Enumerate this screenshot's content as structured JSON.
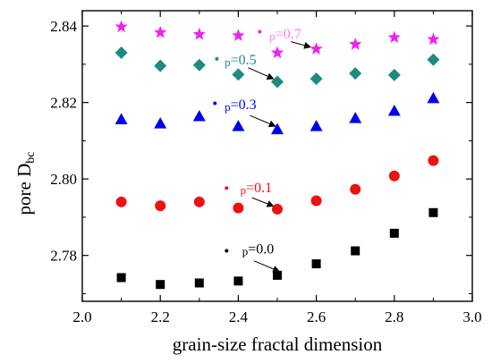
{
  "chart_data": {
    "type": "scatter",
    "title": "",
    "xlabel": "grain-size fractal dimension",
    "ylabel_main": "pore D",
    "ylabel_sub": "bc",
    "xlim": [
      2.0,
      3.0
    ],
    "ylim": [
      2.768,
      2.844
    ],
    "x_ticks": [
      2.0,
      2.2,
      2.4,
      2.6,
      2.8,
      3.0
    ],
    "x_tick_labels": [
      "2.0",
      "2.2",
      "2.4",
      "2.6",
      "2.8",
      "3.0"
    ],
    "y_ticks": [
      2.78,
      2.8,
      2.82,
      2.84
    ],
    "y_tick_labels": [
      "2.78",
      "2.80",
      "2.82",
      "2.84"
    ],
    "grid": false,
    "legend": "none",
    "series": [
      {
        "label": "p=0.0",
        "marker": "square",
        "color": "#000000",
        "x": [
          2.1,
          2.2,
          2.3,
          2.4,
          2.5,
          2.6,
          2.7,
          2.8,
          2.9
        ],
        "y": [
          2.7742,
          2.7724,
          2.7728,
          2.7733,
          2.7748,
          2.7778,
          2.7812,
          2.7858,
          2.7912
        ],
        "annotation": {
          "text": "p=0.0",
          "text_x": 2.41,
          "text_y": 2.7805,
          "dot_x": 2.37,
          "dot_y": 2.7812,
          "arrow_from_x": 2.44,
          "arrow_from_y": 2.7786,
          "arrow_to_x": 2.505,
          "arrow_to_y": 2.7758
        }
      },
      {
        "label": "p=0.1",
        "marker": "circle",
        "color": "#ee1111",
        "x": [
          2.1,
          2.2,
          2.3,
          2.4,
          2.5,
          2.6,
          2.7,
          2.8,
          2.9
        ],
        "y": [
          2.794,
          2.793,
          2.794,
          2.7924,
          2.7921,
          2.7943,
          2.7973,
          2.8008,
          2.8048
        ],
        "annotation": {
          "text": "p=0.1",
          "text_x": 2.405,
          "text_y": 2.7965,
          "dot_x": 2.37,
          "dot_y": 2.7976,
          "arrow_from_x": 2.435,
          "arrow_from_y": 2.7951,
          "arrow_to_x": 2.49,
          "arrow_to_y": 2.7929
        }
      },
      {
        "label": "p=0.3",
        "marker": "triangle",
        "color": "#0000ee",
        "x": [
          2.1,
          2.2,
          2.3,
          2.4,
          2.5,
          2.6,
          2.7,
          2.8,
          2.9
        ],
        "y": [
          2.8156,
          2.8145,
          2.8164,
          2.8138,
          2.813,
          2.8138,
          2.8159,
          2.8178,
          2.8211
        ],
        "annotation": {
          "text": "p=0.3",
          "text_x": 2.365,
          "text_y": 2.8183,
          "dot_x": 2.34,
          "dot_y": 2.8198,
          "arrow_from_x": 2.43,
          "arrow_from_y": 2.8166,
          "arrow_to_x": 2.495,
          "arrow_to_y": 2.8138
        }
      },
      {
        "label": "p=0.5",
        "marker": "diamond",
        "color": "#1f8a80",
        "x": [
          2.1,
          2.2,
          2.3,
          2.4,
          2.5,
          2.6,
          2.7,
          2.8,
          2.9
        ],
        "y": [
          2.833,
          2.8296,
          2.8298,
          2.8273,
          2.8254,
          2.8262,
          2.8276,
          2.8272,
          2.8312
        ],
        "annotation": {
          "text": "p=0.5",
          "text_x": 2.365,
          "text_y": 2.83,
          "dot_x": 2.345,
          "dot_y": 2.8314,
          "arrow_from_x": 2.425,
          "arrow_from_y": 2.8291,
          "arrow_to_x": 2.49,
          "arrow_to_y": 2.8262
        }
      },
      {
        "label": "p=0.7",
        "marker": "star",
        "color": "#ee22ee",
        "x": [
          2.1,
          2.2,
          2.3,
          2.4,
          2.5,
          2.6,
          2.7,
          2.8,
          2.9
        ],
        "y": [
          2.8398,
          2.8383,
          2.8378,
          2.8375,
          2.833,
          2.834,
          2.8352,
          2.837,
          2.8365
        ],
        "annotation": {
          "text": "p=0.7",
          "text_x": 2.48,
          "text_y": 2.8368,
          "text_color": "#ff77ff",
          "dot_x": 2.455,
          "dot_y": 2.8385,
          "arrow_from_x": 2.535,
          "arrow_from_y": 2.8359,
          "arrow_to_x": 2.585,
          "arrow_to_y": 2.8345
        }
      }
    ]
  }
}
